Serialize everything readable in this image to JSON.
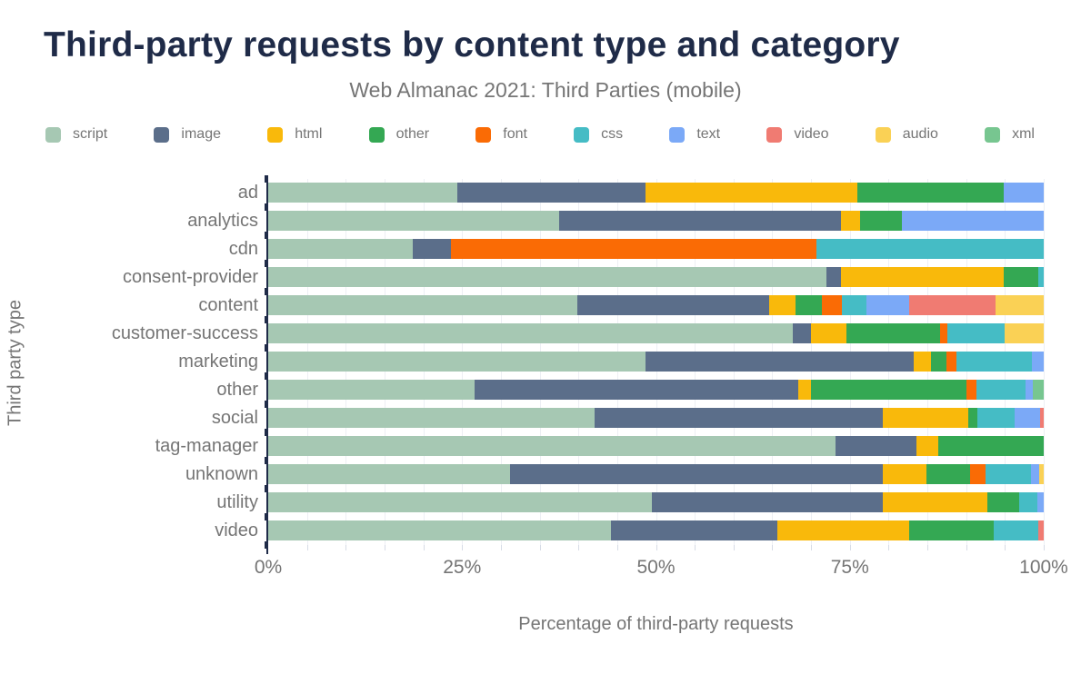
{
  "header": {
    "title": "Third-party requests by content type and category",
    "subtitle": "Web Almanac 2021: Third Parties (mobile)"
  },
  "colors": {
    "script": "#a6c8b3",
    "image": "#5b6e8a",
    "html": "#f9b90b",
    "other": "#34a853",
    "font": "#fa6b05",
    "css": "#45bcc5",
    "text": "#7ba9f7",
    "video": "#f07b72",
    "audio": "#fad155",
    "xml": "#77c690",
    "title_text": "#1f2b48",
    "muted_text": "#757575",
    "axis_line": "#1f2b48",
    "gridline": "#edeff4"
  },
  "chart_data": {
    "type": "bar",
    "variant": "horizontal-stacked",
    "title": "Third-party requests by content type and category",
    "subtitle": "Web Almanac 2021: Third Parties (mobile)",
    "xlabel": "Percentage of third-party requests",
    "ylabel": "Third party type",
    "xlim": [
      0,
      100
    ],
    "unit": "%",
    "grid": "minor vertical gridlines every 5%",
    "legend_position": "top",
    "legend": [
      "script",
      "image",
      "html",
      "other",
      "font",
      "css",
      "text",
      "video",
      "audio",
      "xml"
    ],
    "x_ticks": [
      {
        "value": 0,
        "label": "0%"
      },
      {
        "value": 25,
        "label": "25%"
      },
      {
        "value": 50,
        "label": "50%"
      },
      {
        "value": 75,
        "label": "75%"
      },
      {
        "value": 100,
        "label": "100%"
      }
    ],
    "categories": [
      "ad",
      "analytics",
      "cdn",
      "consent-provider",
      "content",
      "customer-success",
      "marketing",
      "other",
      "social",
      "tag-manager",
      "unknown",
      "utility",
      "video"
    ],
    "rows": [
      {
        "category": "ad",
        "segments": [
          {
            "type": "script",
            "value": 24.4
          },
          {
            "type": "image",
            "value": 24.2
          },
          {
            "type": "html",
            "value": 27.4
          },
          {
            "type": "other",
            "value": 18.8
          },
          {
            "type": "text",
            "value": 5.2
          }
        ]
      },
      {
        "category": "analytics",
        "segments": [
          {
            "type": "script",
            "value": 37.5
          },
          {
            "type": "image",
            "value": 36.3
          },
          {
            "type": "html",
            "value": 2.5
          },
          {
            "type": "other",
            "value": 5.4
          },
          {
            "type": "text",
            "value": 18.3
          }
        ]
      },
      {
        "category": "cdn",
        "segments": [
          {
            "type": "script",
            "value": 18.6
          },
          {
            "type": "image",
            "value": 5.0
          },
          {
            "type": "font",
            "value": 47.1
          },
          {
            "type": "css",
            "value": 29.3
          }
        ]
      },
      {
        "category": "consent-provider",
        "segments": [
          {
            "type": "script",
            "value": 72.0
          },
          {
            "type": "image",
            "value": 1.8
          },
          {
            "type": "html",
            "value": 21.0
          },
          {
            "type": "other",
            "value": 4.5
          },
          {
            "type": "css",
            "value": 0.7
          }
        ]
      },
      {
        "category": "content",
        "segments": [
          {
            "type": "script",
            "value": 39.9
          },
          {
            "type": "image",
            "value": 24.7
          },
          {
            "type": "html",
            "value": 3.4
          },
          {
            "type": "other",
            "value": 3.4
          },
          {
            "type": "font",
            "value": 2.6
          },
          {
            "type": "css",
            "value": 3.1
          },
          {
            "type": "text",
            "value": 5.6
          },
          {
            "type": "video",
            "value": 11.1
          },
          {
            "type": "audio",
            "value": 6.2
          }
        ]
      },
      {
        "category": "customer-success",
        "segments": [
          {
            "type": "script",
            "value": 67.6
          },
          {
            "type": "image",
            "value": 2.4
          },
          {
            "type": "html",
            "value": 4.6
          },
          {
            "type": "other",
            "value": 12.0
          },
          {
            "type": "font",
            "value": 1.0
          },
          {
            "type": "css",
            "value": 7.4
          },
          {
            "type": "audio",
            "value": 5.0
          }
        ]
      },
      {
        "category": "marketing",
        "segments": [
          {
            "type": "script",
            "value": 48.7
          },
          {
            "type": "image",
            "value": 34.5
          },
          {
            "type": "html",
            "value": 2.3
          },
          {
            "type": "other",
            "value": 2.0
          },
          {
            "type": "font",
            "value": 1.3
          },
          {
            "type": "css",
            "value": 9.7
          },
          {
            "type": "text",
            "value": 1.5
          }
        ]
      },
      {
        "category": "other",
        "segments": [
          {
            "type": "script",
            "value": 26.6
          },
          {
            "type": "image",
            "value": 41.8
          },
          {
            "type": "html",
            "value": 1.6
          },
          {
            "type": "other",
            "value": 20.0
          },
          {
            "type": "font",
            "value": 1.3
          },
          {
            "type": "css",
            "value": 6.4
          },
          {
            "type": "text",
            "value": 0.9
          },
          {
            "type": "xml",
            "value": 1.4
          }
        ]
      },
      {
        "category": "social",
        "segments": [
          {
            "type": "script",
            "value": 42.1
          },
          {
            "type": "image",
            "value": 37.1
          },
          {
            "type": "html",
            "value": 11.1
          },
          {
            "type": "other",
            "value": 1.2
          },
          {
            "type": "css",
            "value": 4.8
          },
          {
            "type": "text",
            "value": 3.2
          },
          {
            "type": "video",
            "value": 0.5
          }
        ]
      },
      {
        "category": "tag-manager",
        "segments": [
          {
            "type": "script",
            "value": 73.2
          },
          {
            "type": "image",
            "value": 10.4
          },
          {
            "type": "html",
            "value": 2.8
          },
          {
            "type": "other",
            "value": 13.6
          }
        ]
      },
      {
        "category": "unknown",
        "segments": [
          {
            "type": "script",
            "value": 31.2
          },
          {
            "type": "image",
            "value": 48.0
          },
          {
            "type": "html",
            "value": 5.7
          },
          {
            "type": "other",
            "value": 5.6
          },
          {
            "type": "font",
            "value": 2.0
          },
          {
            "type": "css",
            "value": 5.9
          },
          {
            "type": "text",
            "value": 1.0
          },
          {
            "type": "audio",
            "value": 0.6
          }
        ]
      },
      {
        "category": "utility",
        "segments": [
          {
            "type": "script",
            "value": 49.5
          },
          {
            "type": "image",
            "value": 29.7
          },
          {
            "type": "html",
            "value": 13.5
          },
          {
            "type": "other",
            "value": 4.1
          },
          {
            "type": "css",
            "value": 2.4
          },
          {
            "type": "text",
            "value": 0.8
          }
        ]
      },
      {
        "category": "video",
        "segments": [
          {
            "type": "script",
            "value": 44.2
          },
          {
            "type": "image",
            "value": 21.5
          },
          {
            "type": "html",
            "value": 16.9
          },
          {
            "type": "other",
            "value": 11.0
          },
          {
            "type": "css",
            "value": 5.7
          },
          {
            "type": "video",
            "value": 0.7
          }
        ]
      }
    ]
  }
}
